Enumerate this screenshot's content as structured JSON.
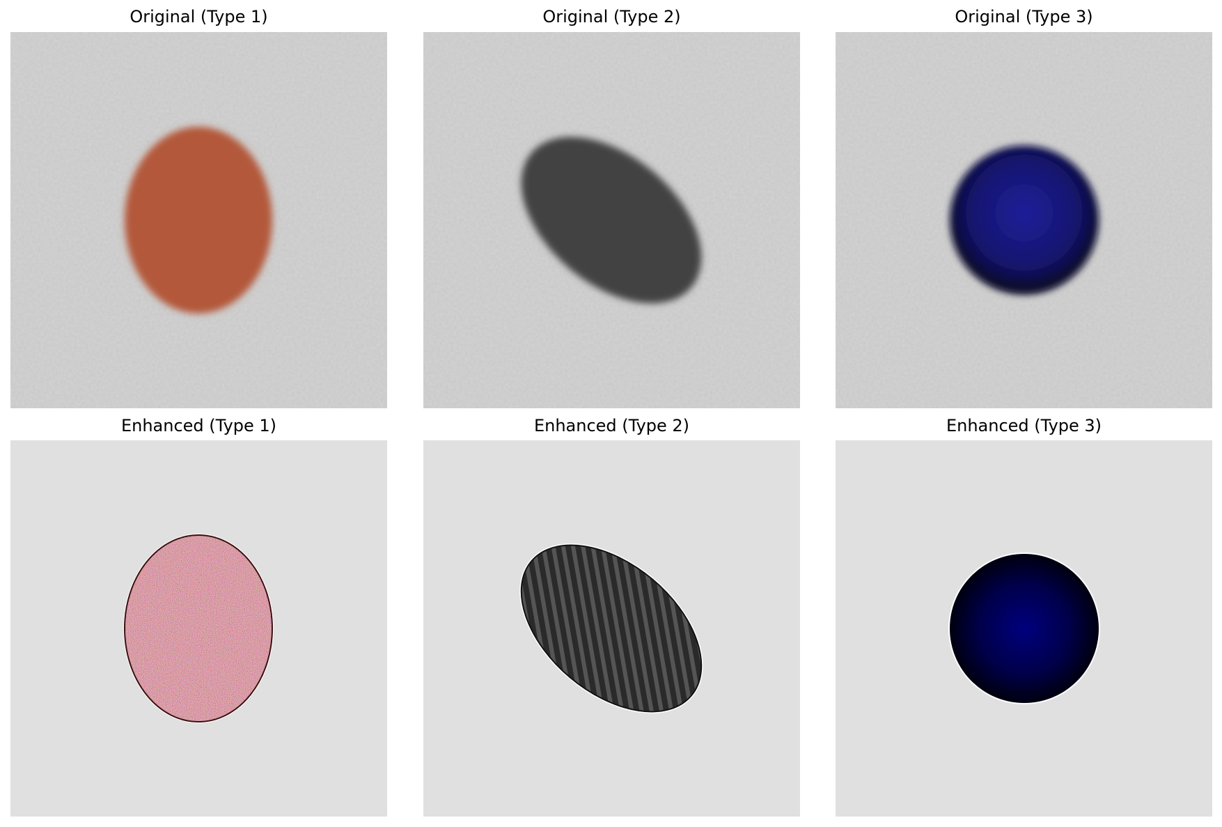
{
  "figure": {
    "panels": [
      {
        "title": "Original (Type 1)",
        "kind": "original",
        "shape": "ellipse-upright",
        "color": "#b3583a",
        "background": "#c8c8c8"
      },
      {
        "title": "Original (Type 2)",
        "kind": "original",
        "shape": "ellipse-tilted-striped",
        "color": "#3e3e3e",
        "background": "#c8c8c8"
      },
      {
        "title": "Original (Type 3)",
        "kind": "original",
        "shape": "circle-gradient",
        "color": "#1a1a8a",
        "background": "#c8c8c8"
      },
      {
        "title": "Enhanced (Type 1)",
        "kind": "enhanced",
        "shape": "ellipse-upright-noisy",
        "color": "#b05a46",
        "background": "#e0e0e0"
      },
      {
        "title": "Enhanced (Type 2)",
        "kind": "enhanced",
        "shape": "ellipse-tilted-striped",
        "color": "#2e2e2e",
        "background": "#e0e0e0"
      },
      {
        "title": "Enhanced (Type 3)",
        "kind": "enhanced",
        "shape": "circle-gradient",
        "color": "#00007a",
        "background": "#e0e0e0"
      }
    ]
  }
}
